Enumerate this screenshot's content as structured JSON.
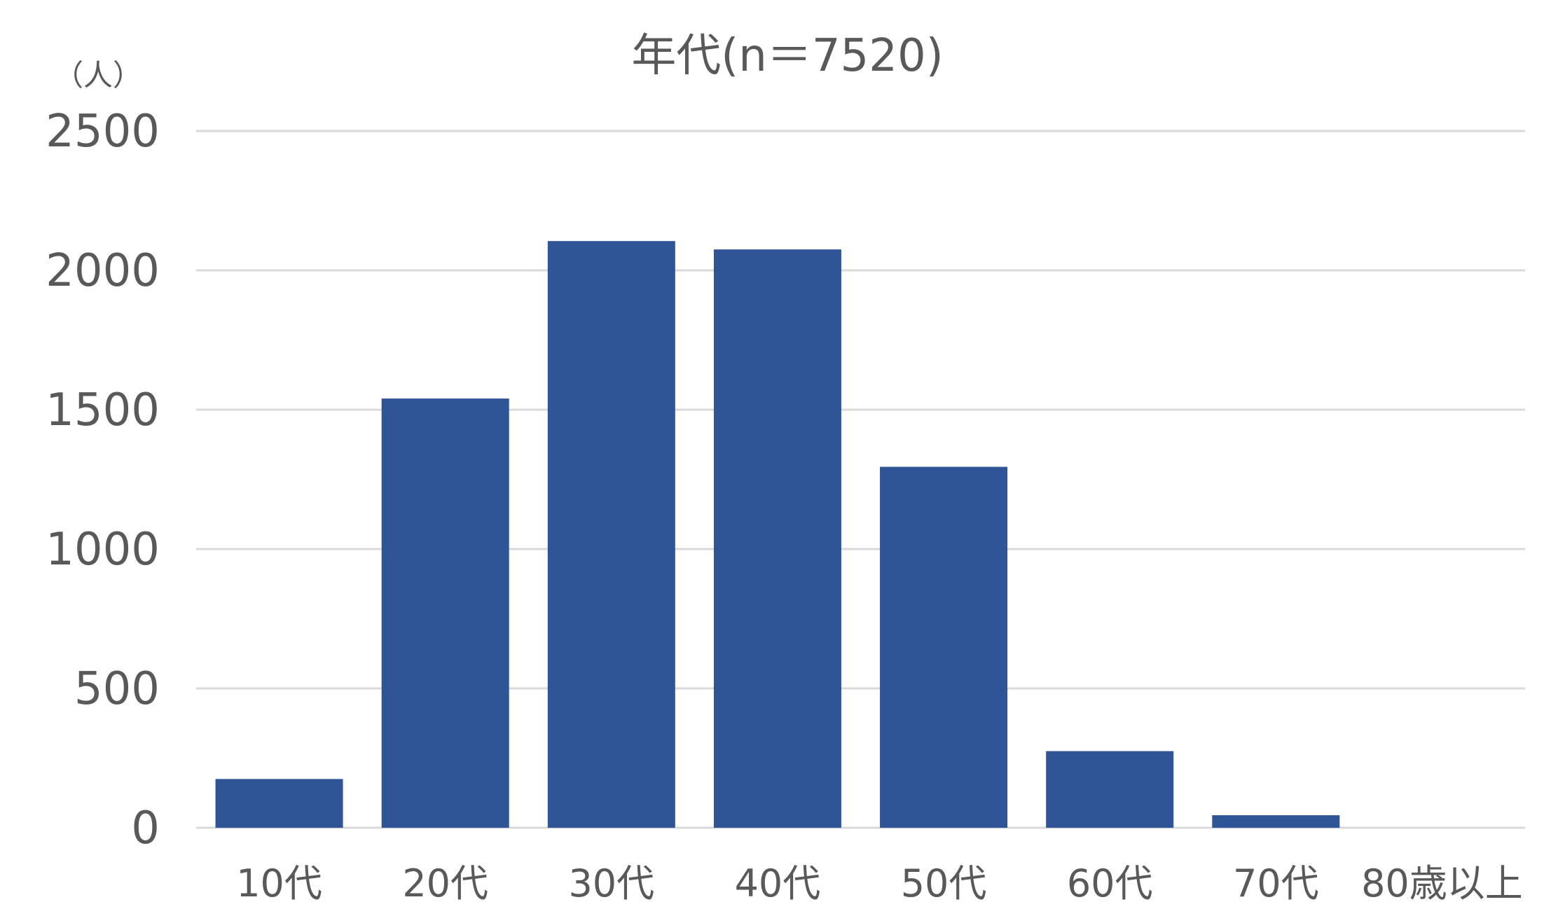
{
  "chart_data": {
    "type": "bar",
    "title": "年代(n＝7520)",
    "ylabel": "（人）",
    "xlabel": "",
    "categories": [
      "10代",
      "20代",
      "30代",
      "40代",
      "50代",
      "60代",
      "70代",
      "80歳以上"
    ],
    "values": [
      175,
      1540,
      2105,
      2075,
      1295,
      275,
      45,
      0
    ],
    "ylim": [
      0,
      2500
    ],
    "yticks": [
      0,
      500,
      1000,
      1500,
      2000,
      2500
    ],
    "grid": true,
    "legend": "none",
    "colors": {
      "bar": "#2F5597",
      "grid": "#D9D9D9",
      "text": "#595959"
    }
  }
}
